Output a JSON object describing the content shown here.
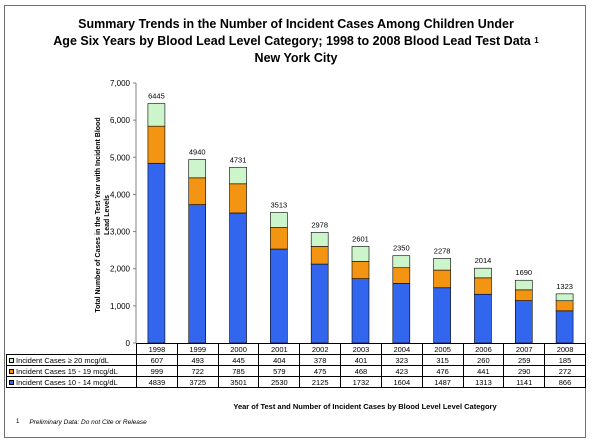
{
  "chart_data": {
    "type": "bar",
    "stacked": true,
    "title_line1": "Summary Trends in the Number of Incident Cases Among Children Under",
    "title_line2": "Age Six Years by Blood Lead Level Category; 1998 to 2008 Blood Lead Test Data",
    "title_sup": "1",
    "title_line3": "New York City",
    "ylabel": "Total Number of Cases in the Test Year with Incident Blood Lead Levels",
    "xlabel": "Year of Test and Number of Incident Cases by Blood Level Level Category",
    "ylim": [
      0,
      7000
    ],
    "yticks": [
      "0",
      "1,000",
      "2,000",
      "3,000",
      "4,000",
      "5,000",
      "6,000",
      "7,000"
    ],
    "categories": [
      "1998",
      "1999",
      "2000",
      "2001",
      "2002",
      "2003",
      "2004",
      "2005",
      "2006",
      "2007",
      "2008"
    ],
    "series": [
      {
        "name": "Incident Cases 10 - 14 mcg/dL",
        "color": "#3366ee",
        "values": [
          4839,
          3725,
          3501,
          2530,
          2125,
          1732,
          1604,
          1487,
          1313,
          1141,
          866
        ]
      },
      {
        "name": "Incident Cases 15 - 19 mcg/dL",
        "color": "#f39513",
        "values": [
          999,
          722,
          785,
          579,
          475,
          468,
          423,
          476,
          441,
          290,
          272
        ]
      },
      {
        "name": "Incident Cases ≥ 20 mcg/dL",
        "color": "#ccf5cc",
        "values": [
          607,
          493,
          445,
          404,
          378,
          401,
          323,
          315,
          260,
          259,
          185
        ]
      }
    ],
    "totals": [
      "6445",
      "4940",
      "4731",
      "3513",
      "2978",
      "2601",
      "2350",
      "2278",
      "2014",
      "1690",
      "1323"
    ],
    "legend_placement": "table-below",
    "grid": false
  },
  "footnote": {
    "number": "1",
    "text": "Preliminary Data: Do not Cite or Release"
  }
}
